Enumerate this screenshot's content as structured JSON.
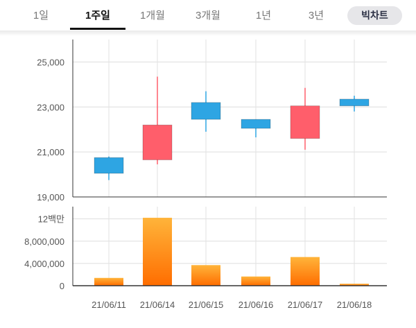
{
  "tabs": [
    {
      "label": "1일",
      "active": false
    },
    {
      "label": "1주일",
      "active": true
    },
    {
      "label": "1개월",
      "active": false
    },
    {
      "label": "3개월",
      "active": false
    },
    {
      "label": "1년",
      "active": false
    },
    {
      "label": "3년",
      "active": false
    }
  ],
  "bitchart_button": "빅차트",
  "colors": {
    "up": "#ff5e6b",
    "down": "#2ea5e3",
    "volume_top": "#ffb43a",
    "volume_bottom": "#ff6d00",
    "grid": "#dddddd",
    "axis": "#333333"
  },
  "chart_data": [
    {
      "type": "candlestick",
      "title": "",
      "categories": [
        "21/06/11",
        "21/06/14",
        "21/06/15",
        "21/06/16",
        "21/06/17",
        "21/06/18"
      ],
      "candles": [
        {
          "date": "21/06/11",
          "open": 20750,
          "high": 20800,
          "low": 19750,
          "close": 20050,
          "direction": "down"
        },
        {
          "date": "21/06/14",
          "open": 20650,
          "high": 24350,
          "low": 20450,
          "close": 22200,
          "direction": "up"
        },
        {
          "date": "21/06/15",
          "open": 23200,
          "high": 23700,
          "low": 21900,
          "close": 22450,
          "direction": "down"
        },
        {
          "date": "21/06/16",
          "open": 22450,
          "high": 22450,
          "low": 21650,
          "close": 22050,
          "direction": "down"
        },
        {
          "date": "21/06/17",
          "open": 21600,
          "high": 23850,
          "low": 21100,
          "close": 23050,
          "direction": "up"
        },
        {
          "date": "21/06/18",
          "open": 23350,
          "high": 23500,
          "low": 22800,
          "close": 23050,
          "direction": "down"
        }
      ],
      "ylim": [
        19000,
        26000
      ],
      "yticks": [
        19000,
        21000,
        23000,
        25000
      ],
      "ytick_labels": [
        "19,000",
        "21,000",
        "23,000",
        "25,000"
      ]
    },
    {
      "type": "bar",
      "title": "",
      "categories": [
        "21/06/11",
        "21/06/14",
        "21/06/15",
        "21/06/16",
        "21/06/17",
        "21/06/18"
      ],
      "values": [
        1400000,
        12200000,
        3700000,
        1650000,
        5150000,
        350000
      ],
      "ylim": [
        0,
        14200000
      ],
      "yticks": [
        0,
        4000000,
        8000000,
        12000000
      ],
      "ytick_labels": [
        "0",
        "4,000,000",
        "8,000,000",
        "12백만"
      ]
    }
  ]
}
